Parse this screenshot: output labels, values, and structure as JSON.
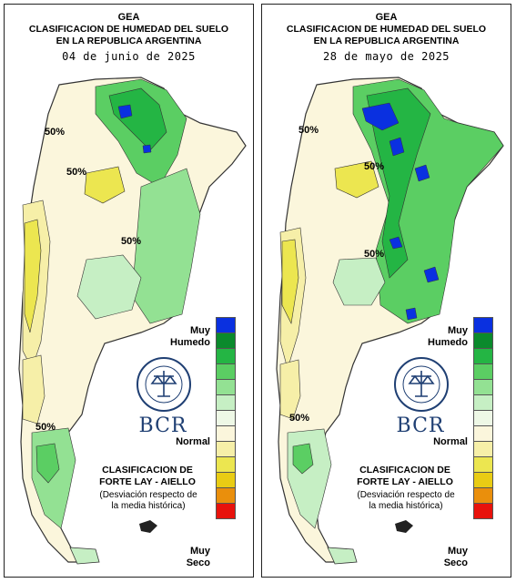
{
  "colors": {
    "muy_seco": "#e8120c",
    "scale": [
      "#0a30e0",
      "#0a8a2c",
      "#24b544",
      "#5bce63",
      "#93e193",
      "#c6efc4",
      "#eef8e6",
      "#fbf6dc",
      "#f6efa8",
      "#ece650",
      "#e9cc14",
      "#ea8f0c",
      "#e8120c"
    ],
    "bcr_blue": "#1f3f73"
  },
  "panels": [
    {
      "org": "GEA",
      "title_line1": "CLASIFICACION DE HUMEDAD DEL SUELO",
      "title_line2": "EN LA REPUBLICA ARGENTINA",
      "date": "04 de junio de 2025",
      "legend": {
        "muy_humedo": "Muy\nHumedo",
        "normal": "Normal",
        "muy_seco": "Muy\nSeco",
        "clasificacion": "CLASIFICACION DE\nFORTE LAY - AIELLO",
        "desviacion": "(Desviación respecto de\nla media histórica)"
      },
      "logo_text": "BCR",
      "seal_text": "BOLSA DE COMERCIO DE ROSARIO",
      "contour_labels": [
        "50%",
        "50%",
        "50%",
        "50%"
      ]
    },
    {
      "org": "GEA",
      "title_line1": "CLASIFICACION DE HUMEDAD DEL SUELO",
      "title_line2": "EN LA REPUBLICA ARGENTINA",
      "date": "28 de mayo de 2025",
      "legend": {
        "muy_humedo": "Muy\nHumedo",
        "normal": "Normal",
        "muy_seco": "Muy\nSeco",
        "clasificacion": "CLASIFICACION DE\nFORTE LAY - AIELLO",
        "desviacion": "(Desviación respecto de\nla media histórica)"
      },
      "logo_text": "BCR",
      "seal_text": "BOLSA DE COMERCIO DE ROSARIO",
      "contour_labels": [
        "50%",
        "50%",
        "50%",
        "50%"
      ]
    }
  ]
}
